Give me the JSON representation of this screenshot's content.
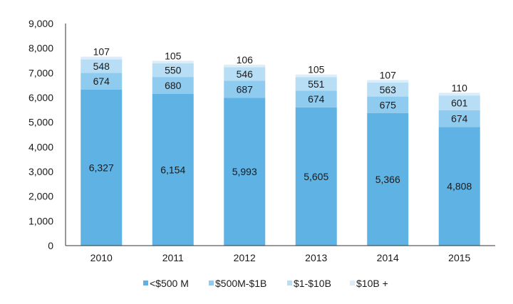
{
  "chart_data": {
    "type": "bar",
    "stacked": true,
    "categories": [
      "2010",
      "2011",
      "2012",
      "2013",
      "2014",
      "2015"
    ],
    "series": [
      {
        "name": "<$500 M",
        "values": [
          6327,
          6154,
          5993,
          5605,
          5366,
          4808
        ],
        "labels": [
          "6,327",
          "6,154",
          "5,993",
          "5,605",
          "5,366",
          "4,808"
        ],
        "color": "#5eb3e4"
      },
      {
        "name": "$500M-$1B",
        "values": [
          674,
          680,
          687,
          674,
          675,
          674
        ],
        "labels": [
          "674",
          "680",
          "687",
          "674",
          "675",
          "674"
        ],
        "color": "#8fcbef"
      },
      {
        "name": "$1-$10B",
        "values": [
          548,
          550,
          546,
          551,
          563,
          601
        ],
        "labels": [
          "548",
          "550",
          "546",
          "551",
          "563",
          "601"
        ],
        "color": "#b7def5"
      },
      {
        "name": "$10B +",
        "values": [
          107,
          105,
          106,
          105,
          107,
          110
        ],
        "labels": [
          "107",
          "105",
          "106",
          "105",
          "107",
          "110"
        ],
        "color": "#dcedf9"
      }
    ],
    "ylim": [
      0,
      9000
    ],
    "yticks": [
      "0",
      "1,000",
      "2,000",
      "3,000",
      "4,000",
      "5,000",
      "6,000",
      "7,000",
      "8,000",
      "9,000"
    ],
    "grid": false,
    "legend_position": "bottom-center",
    "title": "",
    "xlabel": "",
    "ylabel": ""
  }
}
